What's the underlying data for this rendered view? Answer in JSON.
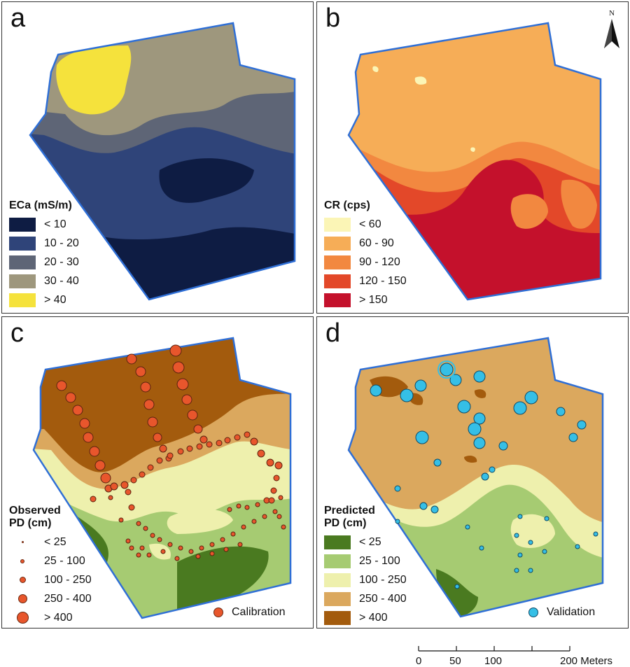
{
  "panels": {
    "a": {
      "letter": "a",
      "legend_title": "ECa (mS/m)",
      "classes": [
        {
          "label": "< 10",
          "color": "#0e1c43"
        },
        {
          "label": "10 - 20",
          "color": "#2f4479"
        },
        {
          "label": "20 - 30",
          "color": "#5e6576"
        },
        {
          "label": "30 - 40",
          "color": "#9e977d"
        },
        {
          "label": "> 40",
          "color": "#f5e23c"
        }
      ]
    },
    "b": {
      "letter": "b",
      "legend_title": "CR (cps)",
      "north_label": "N",
      "classes": [
        {
          "label": "< 60",
          "color": "#fbf5b6"
        },
        {
          "label": "60 - 90",
          "color": "#f6ad57"
        },
        {
          "label": "90 - 120",
          "color": "#f28840"
        },
        {
          "label": "120 - 150",
          "color": "#e34829"
        },
        {
          "label": "> 150",
          "color": "#c4112c"
        }
      ]
    },
    "c": {
      "letter": "c",
      "legend_title_line1": "Observed",
      "legend_title_line2": "PD (cm)",
      "classes": [
        {
          "label": "< 25",
          "size": 3
        },
        {
          "label": "25 - 100",
          "size": 6
        },
        {
          "label": "100 - 250",
          "size": 9
        },
        {
          "label": "250 - 400",
          "size": 13
        },
        {
          "label": "> 400",
          "size": 17
        }
      ],
      "point_label": "Calibration",
      "point_color": "#e8562c"
    },
    "d": {
      "letter": "d",
      "legend_title_line1": "Predicted",
      "legend_title_line2": "PD (cm)",
      "classes": [
        {
          "label": "< 25",
          "color": "#4a7a20"
        },
        {
          "label": "25 - 100",
          "color": "#a6cb72"
        },
        {
          "label": "100 - 250",
          "color": "#eef0ad"
        },
        {
          "label": "250 - 400",
          "color": "#dba85e"
        },
        {
          "label": "> 400",
          "color": "#a35b0d"
        }
      ],
      "point_label": "Validation",
      "point_color": "#35bfe6"
    }
  },
  "scale": {
    "ticks": [
      "0",
      "50",
      "100",
      "200 Meters"
    ]
  }
}
